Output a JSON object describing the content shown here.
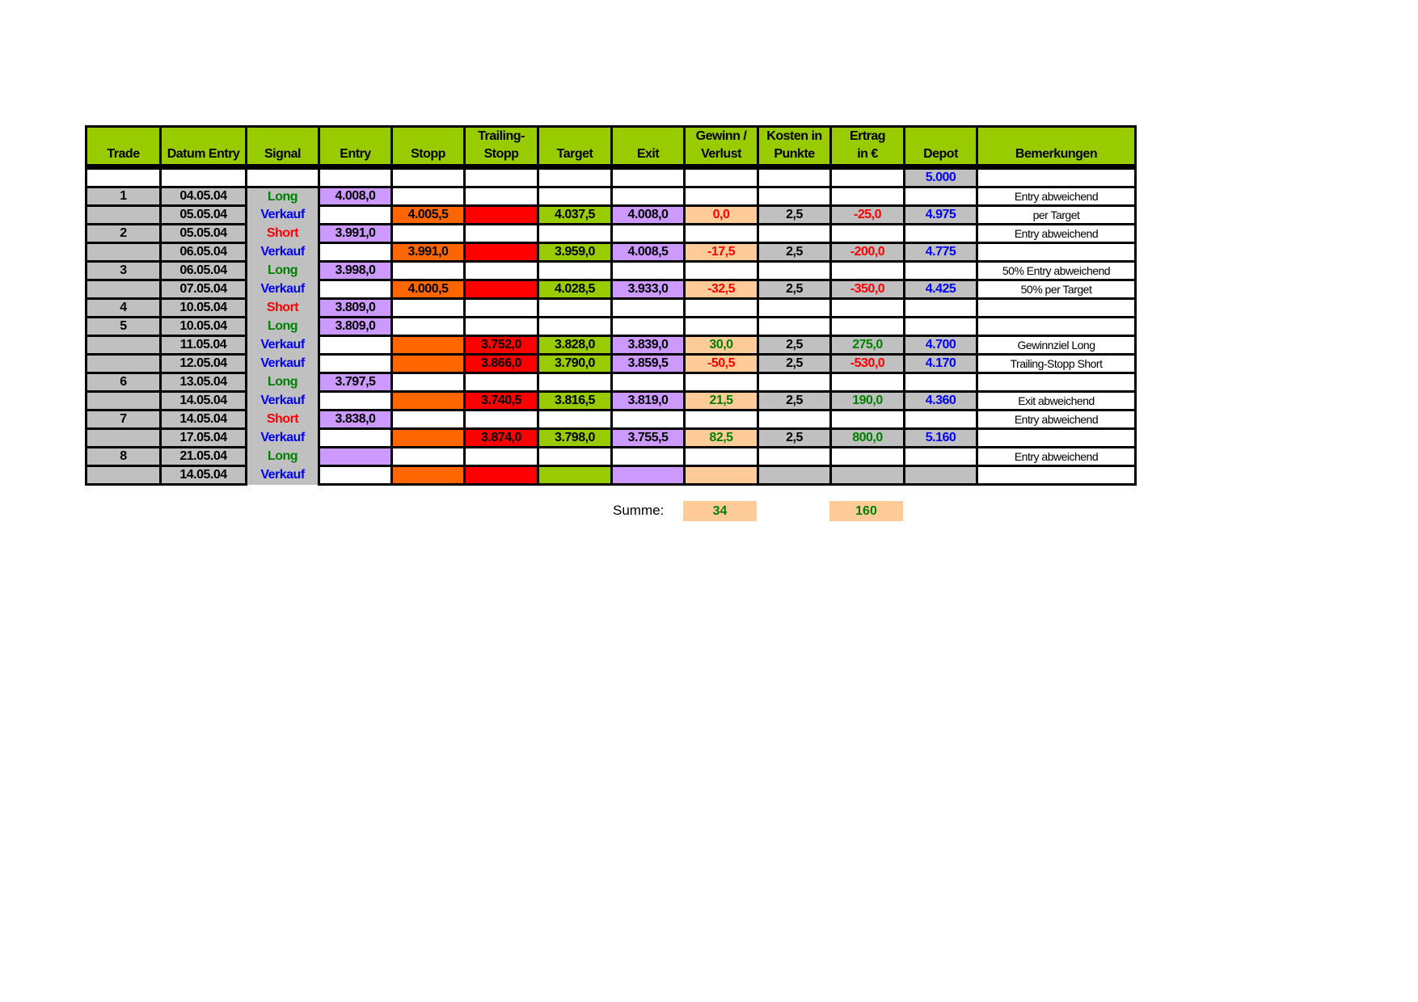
{
  "colors": {
    "header": "#99cc00",
    "gray": "#c0c0c0",
    "entry_exit": "#cc99ff",
    "stopp": "#ff6600",
    "trailing_stopp": "#ff0000",
    "target": "#99cc00",
    "gewinn": "#ffcc99",
    "long_text": "#008000",
    "short_text": "#ff0000",
    "verkauf_text": "#0000ff"
  },
  "headers": [
    "Trade",
    "Datum Entry",
    "Signal",
    "Entry",
    "Stopp",
    "Trailing-\nStopp",
    "Target",
    "Exit",
    "Gewinn /\nVerlust",
    "Kosten in\nPunkte",
    "Ertrag\nin €",
    "Depot",
    "Bemerkungen"
  ],
  "rows": [
    {
      "type": "blank",
      "trade": "",
      "date": "",
      "signal": "",
      "entry": "",
      "stopp": "",
      "trailing": "",
      "target": "",
      "exit": "",
      "gv": "",
      "kosten": "",
      "ertrag": "",
      "depot": "5.000",
      "bem": ""
    },
    {
      "type": "open",
      "trade": "1",
      "date": "04.05.04",
      "signal": "Long",
      "entry": "4.008,0",
      "stopp": "",
      "trailing": "",
      "target": "",
      "exit": "",
      "gv": "",
      "kosten": "",
      "ertrag": "",
      "depot": "",
      "bem": "Entry abweichend"
    },
    {
      "type": "close",
      "trade": "",
      "date": "05.05.04",
      "signal": "Verkauf",
      "entry": "",
      "stopp": "4.005,5",
      "trailing": "",
      "target": "4.037,5",
      "exit": "4.008,0",
      "gv": "0,0",
      "gv_sign": "neg",
      "kosten": "2,5",
      "ertrag": "-25,0",
      "ertrag_sign": "neg",
      "depot": "4.975",
      "bem": "per Target"
    },
    {
      "type": "open",
      "trade": "2",
      "date": "05.05.04",
      "signal": "Short",
      "entry": "3.991,0",
      "stopp": "",
      "trailing": "",
      "target": "",
      "exit": "",
      "gv": "",
      "kosten": "",
      "ertrag": "",
      "depot": "",
      "bem": "Entry abweichend"
    },
    {
      "type": "close",
      "trade": "",
      "date": "06.05.04",
      "signal": "Verkauf",
      "entry": "",
      "stopp": "3.991,0",
      "trailing": "",
      "target": "3.959,0",
      "exit": "4.008,5",
      "gv": "-17,5",
      "gv_sign": "neg",
      "kosten": "2,5",
      "ertrag": "-200,0",
      "ertrag_sign": "neg",
      "depot": "4.775",
      "bem": ""
    },
    {
      "type": "open",
      "trade": "3",
      "date": "06.05.04",
      "signal": "Long",
      "entry": "3.998,0",
      "stopp": "",
      "trailing": "",
      "target": "",
      "exit": "",
      "gv": "",
      "kosten": "",
      "ertrag": "",
      "depot": "",
      "bem": "50% Entry abweichend"
    },
    {
      "type": "close",
      "trade": "",
      "date": "07.05.04",
      "signal": "Verkauf",
      "entry": "",
      "stopp": "4.000,5",
      "trailing": "",
      "target": "4.028,5",
      "exit": "3.933,0",
      "gv": "-32,5",
      "gv_sign": "neg",
      "kosten": "2,5",
      "ertrag": "-350,0",
      "ertrag_sign": "neg",
      "depot": "4.425",
      "bem": "50% per Target"
    },
    {
      "type": "open",
      "trade": "4",
      "date": "10.05.04",
      "signal": "Short",
      "entry": "3.809,0",
      "stopp": "",
      "trailing": "",
      "target": "",
      "exit": "",
      "gv": "",
      "kosten": "",
      "ertrag": "",
      "depot": "",
      "bem": ""
    },
    {
      "type": "open",
      "trade": "5",
      "date": "10.05.04",
      "signal": "Long",
      "entry": "3.809,0",
      "stopp": "",
      "trailing": "",
      "target": "",
      "exit": "",
      "gv": "",
      "kosten": "",
      "ertrag": "",
      "depot": "",
      "bem": ""
    },
    {
      "type": "close",
      "trade": "",
      "date": "11.05.04",
      "signal": "Verkauf",
      "entry": "",
      "stopp": "",
      "trailing": "3.752,0",
      "target": "3.828,0",
      "exit": "3.839,0",
      "gv": "30,0",
      "gv_sign": "pos",
      "kosten": "2,5",
      "ertrag": "275,0",
      "ertrag_sign": "pos",
      "depot": "4.700",
      "bem": "Gewinnziel Long"
    },
    {
      "type": "close",
      "trade": "",
      "date": "12.05.04",
      "signal": "Verkauf",
      "entry": "",
      "stopp": "",
      "trailing": "3.866,0",
      "target": "3.790,0",
      "exit": "3.859,5",
      "gv": "-50,5",
      "gv_sign": "neg",
      "kosten": "2,5",
      "ertrag": "-530,0",
      "ertrag_sign": "neg",
      "depot": "4.170",
      "bem": "Trailing-Stopp Short"
    },
    {
      "type": "open",
      "trade": "6",
      "date": "13.05.04",
      "signal": "Long",
      "entry": "3.797,5",
      "stopp": "",
      "trailing": "",
      "target": "",
      "exit": "",
      "gv": "",
      "kosten": "",
      "ertrag": "",
      "depot": "",
      "bem": ""
    },
    {
      "type": "close",
      "trade": "",
      "date": "14.05.04",
      "signal": "Verkauf",
      "entry": "",
      "stopp": "",
      "trailing": "3.740,5",
      "target": "3.816,5",
      "exit": "3.819,0",
      "gv": "21,5",
      "gv_sign": "pos",
      "kosten": "2,5",
      "ertrag": "190,0",
      "ertrag_sign": "pos",
      "depot": "4.360",
      "bem": "Exit abweichend"
    },
    {
      "type": "open",
      "trade": "7",
      "date": "14.05.04",
      "signal": "Short",
      "entry": "3.838,0",
      "stopp": "",
      "trailing": "",
      "target": "",
      "exit": "",
      "gv": "",
      "kosten": "",
      "ertrag": "",
      "depot": "",
      "bem": "Entry abweichend"
    },
    {
      "type": "close",
      "trade": "",
      "date": "17.05.04",
      "signal": "Verkauf",
      "entry": "",
      "stopp": "",
      "trailing": "3.874,0",
      "target": "3.798,0",
      "exit": "3.755,5",
      "gv": "82,5",
      "gv_sign": "pos",
      "kosten": "2,5",
      "ertrag": "800,0",
      "ertrag_sign": "pos",
      "depot": "5.160",
      "bem": ""
    },
    {
      "type": "open",
      "trade": "8",
      "date": "21.05.04",
      "signal": "Long",
      "entry": "",
      "stopp": "",
      "trailing": "",
      "target": "",
      "exit": "",
      "gv": "",
      "kosten": "",
      "ertrag": "",
      "depot": "",
      "bem": "Entry abweichend"
    },
    {
      "type": "close",
      "trade": "",
      "date": "14.05.04",
      "signal": "Verkauf",
      "entry": "",
      "stopp": "",
      "trailing": "",
      "target": "",
      "exit": "",
      "gv": "",
      "kosten": "",
      "ertrag": "",
      "depot": "",
      "bem": ""
    }
  ],
  "summe": {
    "label": "Summe:",
    "gewinn_total": "34",
    "ertrag_total": "160"
  }
}
